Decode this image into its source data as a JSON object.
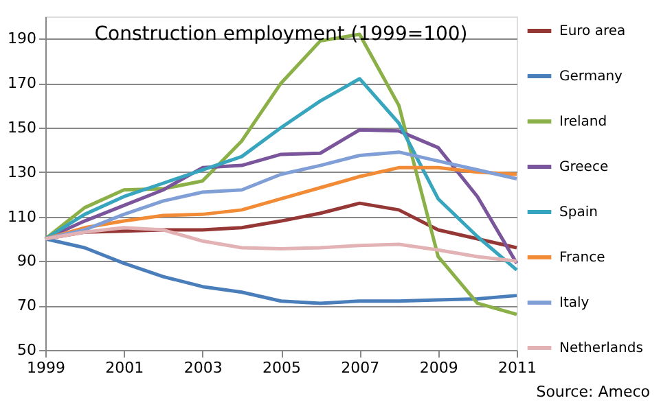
{
  "chart_data": {
    "type": "line",
    "title": "Construction employment (1999=100)",
    "x": [
      1999,
      2000,
      2001,
      2002,
      2003,
      2004,
      2005,
      2006,
      2007,
      2008,
      2009,
      2010,
      2011
    ],
    "xlim": [
      1999,
      2011
    ],
    "xticks": [
      1999,
      2001,
      2003,
      2005,
      2007,
      2009,
      2011
    ],
    "ylim": [
      50,
      200
    ],
    "yticks": [
      50,
      70,
      90,
      110,
      130,
      150,
      170,
      190
    ],
    "grid": "y",
    "legend": "right",
    "marker": "none",
    "line_style": "solid",
    "annotations": [
      "Source: Ameco"
    ],
    "series": [
      {
        "name": "Euro area",
        "color": "#953735",
        "values": [
          100,
          103,
          103.5,
          104,
          104,
          105,
          108,
          111.5,
          116,
          113,
          104,
          100,
          96
        ]
      },
      {
        "name": "Germany",
        "color": "#4a7ebb",
        "values": [
          100,
          96,
          89,
          83,
          78.5,
          76,
          72,
          71,
          72,
          72,
          72.5,
          73,
          74.5
        ]
      },
      {
        "name": "Ireland",
        "color": "#8cb048",
        "values": [
          100,
          114,
          122,
          122.5,
          126,
          144,
          170,
          189,
          192,
          160,
          92,
          71,
          66
        ]
      },
      {
        "name": "Greece",
        "color": "#7a559c",
        "values": [
          100,
          108,
          115,
          122,
          132,
          133,
          138,
          138.5,
          149,
          148.5,
          141,
          119,
          89
        ]
      },
      {
        "name": "Spain",
        "color": "#36a5bd",
        "values": [
          100,
          111,
          119,
          125,
          131,
          137,
          150,
          162,
          172,
          152,
          118,
          101,
          86
        ]
      },
      {
        "name": "France",
        "color": "#f28b36",
        "values": [
          100,
          105,
          108,
          110.5,
          111,
          113,
          118,
          123,
          128,
          132,
          132,
          130,
          129
        ]
      },
      {
        "name": "Italy",
        "color": "#809fd6",
        "values": [
          100,
          104,
          111,
          117,
          121,
          122,
          129,
          133,
          137.5,
          139,
          135,
          131,
          127
        ]
      },
      {
        "name": "Netherlands",
        "color": "#e2b2b4",
        "values": [
          100,
          103,
          105,
          104,
          99,
          96,
          95.5,
          96,
          97,
          97.5,
          95,
          92,
          90
        ]
      }
    ]
  }
}
